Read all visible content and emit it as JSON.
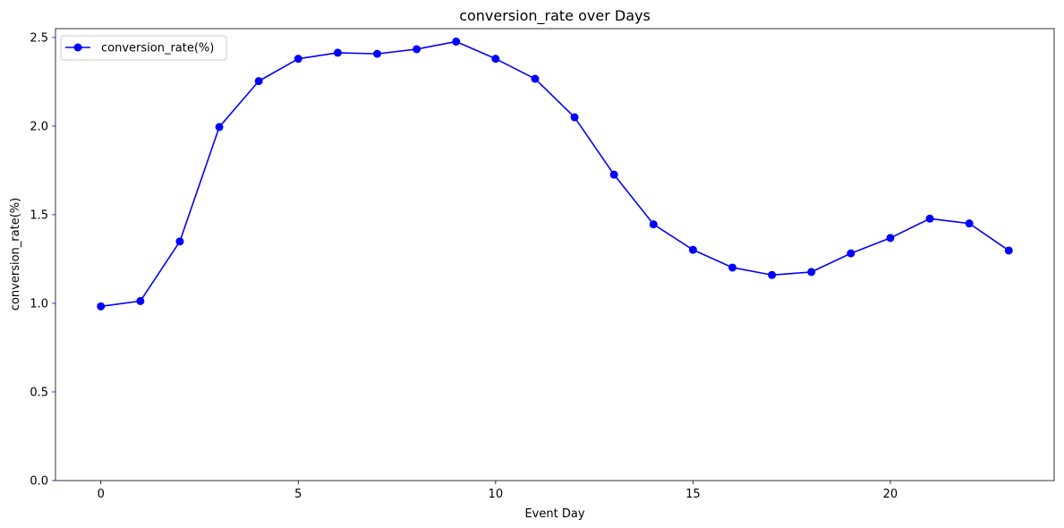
{
  "chart_data": {
    "type": "line",
    "title": "conversion_rate over Days",
    "xlabel": "Event Day",
    "ylabel": "conversion_rate(%)",
    "xlim": [
      -1.15,
      24.15
    ],
    "ylim": [
      0.0,
      2.55
    ],
    "xticks": [
      0,
      5,
      10,
      15,
      20
    ],
    "xtick_labels": [
      "0",
      "5",
      "10",
      "15",
      "20"
    ],
    "yticks": [
      0.0,
      0.5,
      1.0,
      1.5,
      2.0,
      2.5
    ],
    "ytick_labels": [
      "0.0",
      "0.5",
      "1.0",
      "1.5",
      "2.0",
      "2.5"
    ],
    "grid": false,
    "legend_position": "upper left",
    "series": [
      {
        "name": "conversion_rate(%)",
        "color": "#0000ff",
        "marker": "circle",
        "x": [
          0,
          1,
          2,
          3,
          4,
          5,
          6,
          7,
          8,
          9,
          10,
          11,
          12,
          13,
          14,
          15,
          16,
          17,
          18,
          19,
          20,
          21,
          22,
          23
        ],
        "y": [
          0.983,
          1.013,
          1.349,
          1.995,
          2.254,
          2.38,
          2.414,
          2.408,
          2.434,
          2.477,
          2.38,
          2.267,
          2.05,
          1.726,
          1.446,
          1.302,
          1.202,
          1.16,
          1.177,
          1.282,
          1.369,
          1.478,
          1.451,
          1.298
        ]
      }
    ]
  }
}
